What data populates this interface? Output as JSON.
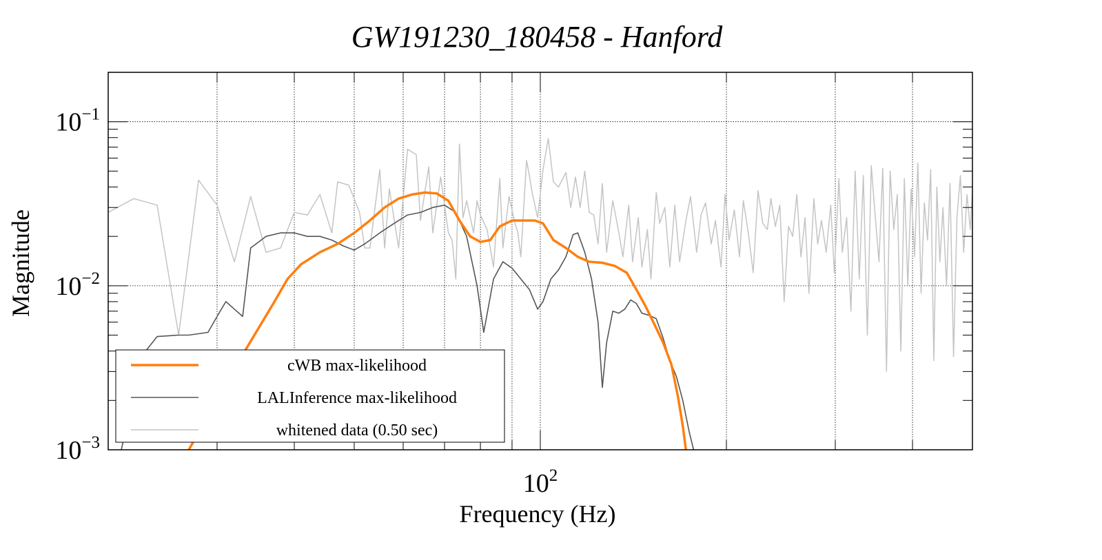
{
  "chart_data": {
    "type": "line",
    "title": "GW191230_180458 - Hanford",
    "xlabel": "Frequency (Hz)",
    "ylabel": "Magnitude",
    "x_scale": "log",
    "y_scale": "log",
    "xlim": [
      20,
      500
    ],
    "ylim": [
      0.001,
      0.2
    ],
    "grid": true,
    "x_ticks": [
      {
        "value": 100,
        "base": "10",
        "exp": "2"
      }
    ],
    "y_ticks": [
      {
        "value": 0.1,
        "base": "10",
        "exp": "−1"
      },
      {
        "value": 0.01,
        "base": "10",
        "exp": "−2"
      },
      {
        "value": 0.001,
        "base": "10",
        "exp": "−3"
      }
    ],
    "x_minor_grid": [
      30,
      40,
      50,
      60,
      70,
      80,
      90,
      200,
      300,
      400
    ],
    "legend": {
      "position": "bottom-left",
      "entries": [
        {
          "label": "cWB max-likelihood",
          "color": "#ff7f0e"
        },
        {
          "label": "LALInference max-likelihood",
          "color": "#555555"
        },
        {
          "label": "whitened data (0.50 sec)",
          "color": "#c4c4c4"
        }
      ]
    },
    "series": [
      {
        "name": "whitened data (0.50 sec)",
        "color": "#c4c4c4",
        "stroke_width": 1.5,
        "points": [
          [
            20,
            0.028
          ],
          [
            22,
            0.034
          ],
          [
            24,
            0.031
          ],
          [
            26,
            0.005
          ],
          [
            28,
            0.044
          ],
          [
            30,
            0.031
          ],
          [
            32,
            0.014
          ],
          [
            34,
            0.035
          ],
          [
            36,
            0.016
          ],
          [
            38,
            0.017
          ],
          [
            40,
            0.028
          ],
          [
            42,
            0.027
          ],
          [
            44,
            0.036
          ],
          [
            46,
            0.021
          ],
          [
            47,
            0.043
          ],
          [
            49,
            0.041
          ],
          [
            51,
            0.028
          ],
          [
            52,
            0.017
          ],
          [
            53,
            0.017
          ],
          [
            55,
            0.051
          ],
          [
            56,
            0.017
          ],
          [
            57,
            0.039
          ],
          [
            59,
            0.017
          ],
          [
            61,
            0.068
          ],
          [
            63,
            0.063
          ],
          [
            64,
            0.025
          ],
          [
            66,
            0.053
          ],
          [
            67,
            0.021
          ],
          [
            69,
            0.046
          ],
          [
            71,
            0.021
          ],
          [
            72,
            0.019
          ],
          [
            73,
            0.011
          ],
          [
            74,
            0.073
          ],
          [
            75,
            0.026
          ],
          [
            76,
            0.033
          ],
          [
            78,
            0.021
          ],
          [
            79,
            0.033
          ],
          [
            80,
            0.027
          ],
          [
            82,
            0.022
          ],
          [
            84,
            0.013
          ],
          [
            86,
            0.045
          ],
          [
            87,
            0.017
          ],
          [
            89,
            0.035
          ],
          [
            91,
            0.024
          ],
          [
            92,
            0.021
          ],
          [
            93,
            0.015
          ],
          [
            95,
            0.058
          ],
          [
            96,
            0.047
          ],
          [
            97,
            0.037
          ],
          [
            99,
            0.026
          ],
          [
            101,
            0.051
          ],
          [
            103,
            0.079
          ],
          [
            105,
            0.043
          ],
          [
            107,
            0.04
          ],
          [
            110,
            0.049
          ],
          [
            112,
            0.03
          ],
          [
            114,
            0.046
          ],
          [
            116,
            0.03
          ],
          [
            118,
            0.05
          ],
          [
            120,
            0.028
          ],
          [
            122,
            0.027
          ],
          [
            124,
            0.018
          ],
          [
            126,
            0.042
          ],
          [
            128,
            0.016
          ],
          [
            131,
            0.033
          ],
          [
            134,
            0.021
          ],
          [
            136,
            0.015
          ],
          [
            139,
            0.031
          ],
          [
            141,
            0.014
          ],
          [
            144,
            0.026
          ],
          [
            146,
            0.013
          ],
          [
            149,
            0.022
          ],
          [
            151,
            0.011
          ],
          [
            154,
            0.037
          ],
          [
            156,
            0.024
          ],
          [
            159,
            0.03
          ],
          [
            162,
            0.013
          ],
          [
            165,
            0.031
          ],
          [
            168,
            0.014
          ],
          [
            172,
            0.025
          ],
          [
            175,
            0.035
          ],
          [
            179,
            0.016
          ],
          [
            182,
            0.027
          ],
          [
            185,
            0.032
          ],
          [
            189,
            0.018
          ],
          [
            192,
            0.025
          ],
          [
            196,
            0.013
          ],
          [
            199,
            0.036
          ],
          [
            202,
            0.019
          ],
          [
            206,
            0.029
          ],
          [
            210,
            0.015
          ],
          [
            213,
            0.033
          ],
          [
            217,
            0.021
          ],
          [
            221,
            0.012
          ],
          [
            225,
            0.038
          ],
          [
            229,
            0.024
          ],
          [
            233,
            0.022
          ],
          [
            236,
            0.034
          ],
          [
            240,
            0.023
          ],
          [
            244,
            0.031
          ],
          [
            248,
            0.008
          ],
          [
            252,
            0.023
          ],
          [
            256,
            0.02
          ],
          [
            260,
            0.036
          ],
          [
            264,
            0.015
          ],
          [
            268,
            0.026
          ],
          [
            272,
            0.009
          ],
          [
            277,
            0.034
          ],
          [
            281,
            0.018
          ],
          [
            285,
            0.025
          ],
          [
            290,
            0.016
          ],
          [
            295,
            0.031
          ],
          [
            299,
            0.012
          ],
          [
            304,
            0.045
          ],
          [
            308,
            0.016
          ],
          [
            313,
            0.026
          ],
          [
            318,
            0.007
          ],
          [
            323,
            0.05
          ],
          [
            328,
            0.011
          ],
          [
            333,
            0.047
          ],
          [
            338,
            0.005
          ],
          [
            343,
            0.054
          ],
          [
            348,
            0.027
          ],
          [
            353,
            0.014
          ],
          [
            358,
            0.052
          ],
          [
            363,
            0.003
          ],
          [
            368,
            0.05
          ],
          [
            373,
            0.022
          ],
          [
            378,
            0.036
          ],
          [
            383,
            0.004
          ],
          [
            388,
            0.045
          ],
          [
            393,
            0.01
          ],
          [
            398,
            0.039
          ],
          [
            403,
            0.015
          ],
          [
            408,
            0.056
          ],
          [
            413,
            0.009
          ],
          [
            418,
            0.032
          ],
          [
            423,
            0.019
          ],
          [
            428,
            0.051
          ],
          [
            433,
            0.0035
          ],
          [
            438,
            0.04
          ],
          [
            443,
            0.014
          ],
          [
            448,
            0.03
          ],
          [
            454,
            0.01
          ],
          [
            460,
            0.042
          ],
          [
            466,
            0.0037
          ],
          [
            472,
            0.026
          ],
          [
            478,
            0.047
          ],
          [
            484,
            0.016
          ],
          [
            490,
            0.036
          ],
          [
            496,
            0.022
          ],
          [
            500,
            0.039
          ]
        ]
      },
      {
        "name": "LALInference max-likelihood",
        "color": "#555555",
        "stroke_width": 1.6,
        "points": [
          [
            21,
            0.001
          ],
          [
            22,
            0.0022
          ],
          [
            23,
            0.004
          ],
          [
            24,
            0.0049
          ],
          [
            26,
            0.005
          ],
          [
            27,
            0.005
          ],
          [
            28,
            0.0051
          ],
          [
            29,
            0.0052
          ],
          [
            30,
            0.0065
          ],
          [
            31,
            0.008
          ],
          [
            32,
            0.0072
          ],
          [
            33,
            0.0065
          ],
          [
            34,
            0.017
          ],
          [
            36,
            0.02
          ],
          [
            38,
            0.021
          ],
          [
            40,
            0.021
          ],
          [
            42,
            0.02
          ],
          [
            44,
            0.02
          ],
          [
            46,
            0.019
          ],
          [
            48,
            0.0175
          ],
          [
            50,
            0.0165
          ],
          [
            52,
            0.018
          ],
          [
            55,
            0.021
          ],
          [
            58,
            0.024
          ],
          [
            61,
            0.027
          ],
          [
            64,
            0.028
          ],
          [
            67,
            0.03
          ],
          [
            70,
            0.031
          ],
          [
            73,
            0.028
          ],
          [
            76,
            0.02
          ],
          [
            79,
            0.01
          ],
          [
            81,
            0.0052
          ],
          [
            84,
            0.011
          ],
          [
            87,
            0.014
          ],
          [
            90,
            0.0128
          ],
          [
            93,
            0.011
          ],
          [
            96,
            0.0095
          ],
          [
            99,
            0.0072
          ],
          [
            101,
            0.008
          ],
          [
            104,
            0.011
          ],
          [
            107,
            0.0125
          ],
          [
            110,
            0.015
          ],
          [
            113,
            0.0205
          ],
          [
            115,
            0.021
          ],
          [
            118,
            0.016
          ],
          [
            121,
            0.011
          ],
          [
            124,
            0.006
          ],
          [
            126,
            0.0024
          ],
          [
            128,
            0.0045
          ],
          [
            131,
            0.007
          ],
          [
            134,
            0.0068
          ],
          [
            137,
            0.0072
          ],
          [
            140,
            0.0082
          ],
          [
            143,
            0.0078
          ],
          [
            146,
            0.0068
          ],
          [
            150,
            0.0066
          ],
          [
            154,
            0.0063
          ],
          [
            158,
            0.0048
          ],
          [
            162,
            0.0035
          ],
          [
            166,
            0.0028
          ],
          [
            170,
            0.002
          ],
          [
            174,
            0.0013
          ],
          [
            177,
            0.001
          ]
        ]
      },
      {
        "name": "cWB max-likelihood",
        "color": "#ff7f0e",
        "stroke_width": 3.5,
        "points": [
          [
            27,
            0.001
          ],
          [
            29,
            0.0016
          ],
          [
            31,
            0.0026
          ],
          [
            33,
            0.0038
          ],
          [
            35,
            0.0055
          ],
          [
            37,
            0.0078
          ],
          [
            39,
            0.011
          ],
          [
            41,
            0.0135
          ],
          [
            44,
            0.016
          ],
          [
            47,
            0.018
          ],
          [
            50,
            0.021
          ],
          [
            53,
            0.025
          ],
          [
            56,
            0.03
          ],
          [
            59,
            0.034
          ],
          [
            62,
            0.036
          ],
          [
            65,
            0.037
          ],
          [
            68,
            0.0365
          ],
          [
            71,
            0.033
          ],
          [
            74,
            0.025
          ],
          [
            77,
            0.02
          ],
          [
            80,
            0.0185
          ],
          [
            83,
            0.019
          ],
          [
            86,
            0.023
          ],
          [
            90,
            0.025
          ],
          [
            94,
            0.025
          ],
          [
            98,
            0.025
          ],
          [
            101,
            0.024
          ],
          [
            105,
            0.019
          ],
          [
            110,
            0.017
          ],
          [
            115,
            0.015
          ],
          [
            120,
            0.014
          ],
          [
            126,
            0.0138
          ],
          [
            132,
            0.0132
          ],
          [
            138,
            0.012
          ],
          [
            143,
            0.0095
          ],
          [
            148,
            0.0075
          ],
          [
            153,
            0.0058
          ],
          [
            158,
            0.0045
          ],
          [
            163,
            0.0033
          ],
          [
            167,
            0.0021
          ],
          [
            170,
            0.0014
          ],
          [
            172,
            0.001
          ]
        ]
      }
    ]
  }
}
